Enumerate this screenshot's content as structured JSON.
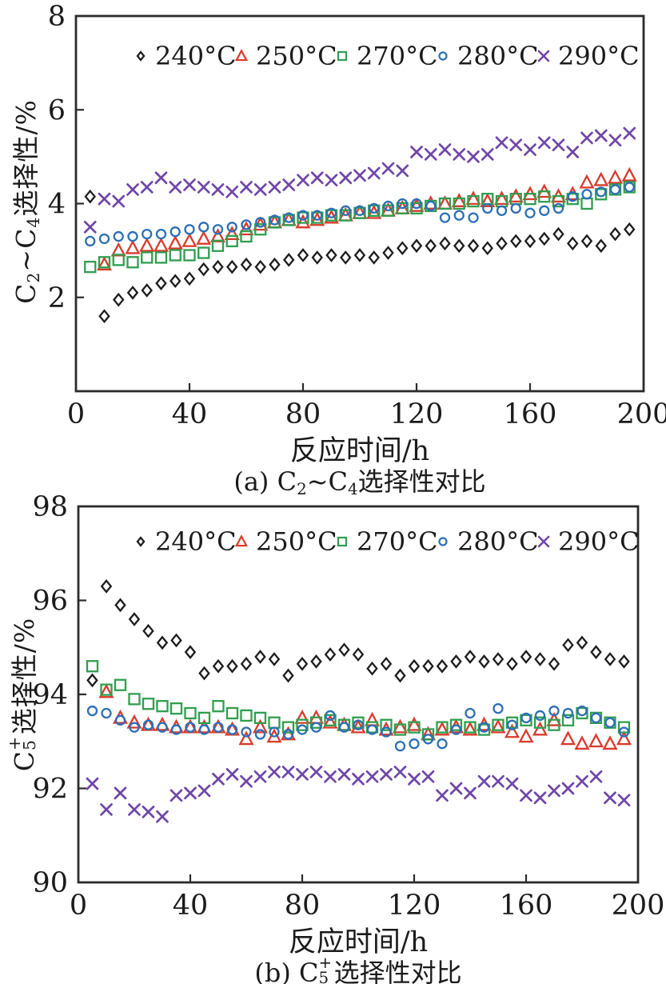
{
  "page": {
    "background": "#ffffff",
    "text_color": "#1b1b1b",
    "axis_color": "#2b2b2b"
  },
  "chart_data": [
    {
      "id": "a",
      "type": "scatter",
      "xlabel": "反应时间/h",
      "ylabel_text": "C2~C4选择性/%",
      "caption_text": "(a) C2~C4选择性对比",
      "ylabel_segments": [
        {
          "t": "C"
        },
        {
          "t": "2",
          "style": "sub"
        },
        {
          "t": "~C"
        },
        {
          "t": "4",
          "style": "sub"
        },
        {
          "t": "选择性/%"
        }
      ],
      "caption_segments": [
        {
          "t": "(a) C"
        },
        {
          "t": "2",
          "style": "sub"
        },
        {
          "t": "~C"
        },
        {
          "t": "4",
          "style": "sub"
        },
        {
          "t": "选择性对比"
        }
      ],
      "xlim": [
        0,
        200
      ],
      "ylim": [
        0,
        8
      ],
      "xticks": [
        0,
        40,
        80,
        120,
        160,
        200
      ],
      "yticks": [
        2,
        4,
        6,
        8
      ],
      "grid": false,
      "legend_position": "top-center",
      "x": [
        5,
        10,
        15,
        20,
        25,
        30,
        35,
        40,
        45,
        50,
        55,
        60,
        65,
        70,
        75,
        80,
        85,
        90,
        95,
        100,
        105,
        110,
        115,
        120,
        125,
        130,
        135,
        140,
        145,
        150,
        155,
        160,
        165,
        170,
        175,
        180,
        185,
        190,
        195
      ],
      "series": [
        {
          "name": "240°C",
          "marker": "diamond",
          "color": "#1c1c1c",
          "values": [
            4.15,
            1.6,
            1.95,
            2.1,
            2.15,
            2.3,
            2.35,
            2.4,
            2.6,
            2.65,
            2.65,
            2.7,
            2.65,
            2.7,
            2.8,
            2.9,
            2.85,
            2.9,
            2.85,
            2.9,
            2.85,
            2.95,
            3.05,
            3.1,
            3.1,
            3.15,
            3.1,
            3.1,
            3.05,
            3.15,
            3.2,
            3.2,
            3.25,
            3.35,
            3.15,
            3.2,
            3.1,
            3.35,
            3.45
          ]
        },
        {
          "name": "250°C",
          "marker": "triangle",
          "color": "#d93a2b",
          "values": [
            null,
            2.7,
            3.0,
            3.05,
            3.1,
            3.1,
            3.15,
            3.2,
            3.25,
            3.3,
            3.35,
            3.45,
            3.55,
            3.6,
            3.65,
            3.6,
            3.65,
            3.7,
            3.75,
            3.8,
            3.8,
            3.85,
            3.9,
            3.95,
            4.0,
            4.0,
            4.05,
            4.1,
            4.05,
            4.1,
            4.15,
            4.2,
            4.25,
            4.15,
            4.2,
            4.45,
            4.5,
            4.55,
            4.6
          ]
        },
        {
          "name": "270°C",
          "marker": "square",
          "color": "#2f9e4f",
          "values": [
            2.65,
            2.75,
            2.8,
            2.75,
            2.85,
            2.85,
            2.9,
            2.9,
            2.95,
            3.1,
            3.2,
            3.3,
            3.45,
            3.6,
            3.65,
            3.7,
            3.7,
            3.75,
            3.75,
            3.8,
            3.85,
            3.85,
            3.9,
            3.9,
            3.95,
            4.0,
            4.0,
            4.05,
            4.1,
            4.05,
            4.1,
            4.1,
            4.15,
            4.05,
            4.1,
            4.0,
            4.2,
            4.3,
            4.35
          ]
        },
        {
          "name": "280°C",
          "marker": "circle",
          "color": "#2c6fb5",
          "values": [
            3.2,
            3.25,
            3.3,
            3.3,
            3.35,
            3.35,
            3.4,
            3.45,
            3.5,
            3.45,
            3.5,
            3.55,
            3.6,
            3.65,
            3.7,
            3.75,
            3.75,
            3.8,
            3.85,
            3.85,
            3.9,
            3.95,
            4.0,
            4.0,
            3.95,
            3.7,
            3.75,
            3.7,
            3.9,
            3.85,
            3.9,
            3.8,
            3.85,
            3.9,
            4.15,
            4.2,
            4.25,
            4.3,
            4.35
          ]
        },
        {
          "name": "290°C",
          "marker": "x",
          "color": "#6f46a8",
          "values": [
            3.5,
            4.1,
            4.05,
            4.3,
            4.35,
            4.55,
            4.35,
            4.4,
            4.35,
            4.3,
            4.25,
            4.35,
            4.3,
            4.35,
            4.4,
            4.5,
            4.55,
            4.5,
            4.55,
            4.6,
            4.65,
            4.75,
            4.7,
            5.1,
            5.05,
            5.15,
            5.05,
            5.0,
            5.05,
            5.3,
            5.25,
            5.15,
            5.3,
            5.25,
            5.1,
            5.4,
            5.45,
            5.35,
            5.5
          ]
        }
      ]
    },
    {
      "id": "b",
      "type": "scatter",
      "xlabel": "反应时间/h",
      "ylabel_text": "C5+选择性/%",
      "caption_text": "(b) C5+选择性对比",
      "ylabel_segments": [
        {
          "t": "C"
        },
        {
          "sub": "5",
          "sup": "+"
        },
        {
          "t": "选择性/%"
        }
      ],
      "caption_segments": [
        {
          "t": "(b) C"
        },
        {
          "sub": "5",
          "sup": "+"
        },
        {
          "t": "选择性对比"
        }
      ],
      "xlim": [
        0,
        200
      ],
      "ylim": [
        90,
        98
      ],
      "xticks": [
        0,
        40,
        80,
        120,
        160,
        200
      ],
      "yticks": [
        90,
        92,
        94,
        96,
        98
      ],
      "grid": false,
      "legend_position": "top-center",
      "x": [
        5,
        10,
        15,
        20,
        25,
        30,
        35,
        40,
        45,
        50,
        55,
        60,
        65,
        70,
        75,
        80,
        85,
        90,
        95,
        100,
        105,
        110,
        115,
        120,
        125,
        130,
        135,
        140,
        145,
        150,
        155,
        160,
        165,
        170,
        175,
        180,
        185,
        190,
        195
      ],
      "series": [
        {
          "name": "240°C",
          "marker": "diamond",
          "color": "#1c1c1c",
          "values": [
            94.3,
            96.3,
            95.9,
            95.6,
            95.35,
            95.1,
            95.15,
            94.9,
            94.45,
            94.6,
            94.6,
            94.65,
            94.8,
            94.75,
            94.4,
            94.65,
            94.7,
            94.85,
            94.95,
            94.85,
            94.55,
            94.65,
            94.4,
            94.6,
            94.6,
            94.6,
            94.7,
            94.8,
            94.7,
            94.75,
            94.65,
            94.8,
            94.75,
            94.65,
            95.05,
            95.1,
            94.9,
            94.75,
            94.7
          ]
        },
        {
          "name": "250°C",
          "marker": "triangle",
          "color": "#d93a2b",
          "values": [
            null,
            94.05,
            93.5,
            93.4,
            93.35,
            93.35,
            93.3,
            93.3,
            93.3,
            93.3,
            93.25,
            93.05,
            93.3,
            93.1,
            93.15,
            93.5,
            93.5,
            93.4,
            93.35,
            93.3,
            93.45,
            93.25,
            93.3,
            93.35,
            93.15,
            93.25,
            93.3,
            93.25,
            93.35,
            93.3,
            93.2,
            93.1,
            93.25,
            93.45,
            93.05,
            92.95,
            93.0,
            92.95,
            93.05
          ]
        },
        {
          "name": "270°C",
          "marker": "square",
          "color": "#2f9e4f",
          "values": [
            94.6,
            94.1,
            94.2,
            93.9,
            93.8,
            93.75,
            93.7,
            93.6,
            93.5,
            93.75,
            93.6,
            93.55,
            93.5,
            93.4,
            93.3,
            93.35,
            93.4,
            93.45,
            93.35,
            93.4,
            93.3,
            93.35,
            93.25,
            93.3,
            93.15,
            93.3,
            93.35,
            93.3,
            93.25,
            93.35,
            93.4,
            93.45,
            93.4,
            93.35,
            93.45,
            93.6,
            93.5,
            93.4,
            93.3
          ]
        },
        {
          "name": "280°C",
          "marker": "circle",
          "color": "#2c6fb5",
          "values": [
            93.65,
            93.6,
            93.45,
            93.3,
            93.35,
            93.3,
            93.25,
            93.3,
            93.25,
            93.3,
            93.25,
            93.2,
            93.15,
            93.2,
            93.15,
            93.25,
            93.3,
            93.55,
            93.3,
            93.35,
            93.25,
            93.2,
            92.9,
            92.95,
            93.05,
            92.95,
            93.25,
            93.6,
            93.3,
            93.7,
            93.35,
            93.5,
            93.55,
            93.65,
            93.6,
            93.65,
            93.5,
            93.4,
            93.2
          ]
        },
        {
          "name": "290°C",
          "marker": "x",
          "color": "#6f46a8",
          "values": [
            92.1,
            91.55,
            91.9,
            91.55,
            91.5,
            91.4,
            91.85,
            91.9,
            91.95,
            92.2,
            92.3,
            92.15,
            92.25,
            92.35,
            92.35,
            92.3,
            92.35,
            92.25,
            92.3,
            92.2,
            92.25,
            92.3,
            92.35,
            92.2,
            92.25,
            91.85,
            92.0,
            91.9,
            92.15,
            92.15,
            92.1,
            91.85,
            91.8,
            91.95,
            92.0,
            92.15,
            92.25,
            91.8,
            91.75
          ]
        }
      ]
    }
  ]
}
